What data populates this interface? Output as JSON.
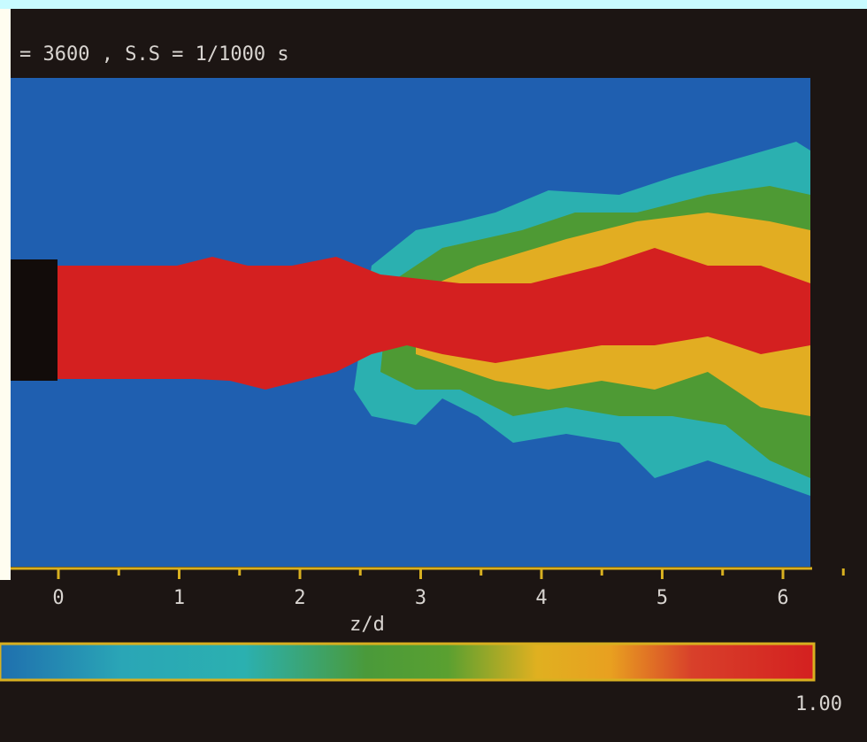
{
  "caption": "= 3600 , S.S = 1/1000 s",
  "axis": {
    "label": "z/d",
    "ticks": [
      "0",
      "1",
      "2",
      "3",
      "4",
      "5",
      "6"
    ]
  },
  "colorbar": {
    "max_label": "1.00"
  }
}
